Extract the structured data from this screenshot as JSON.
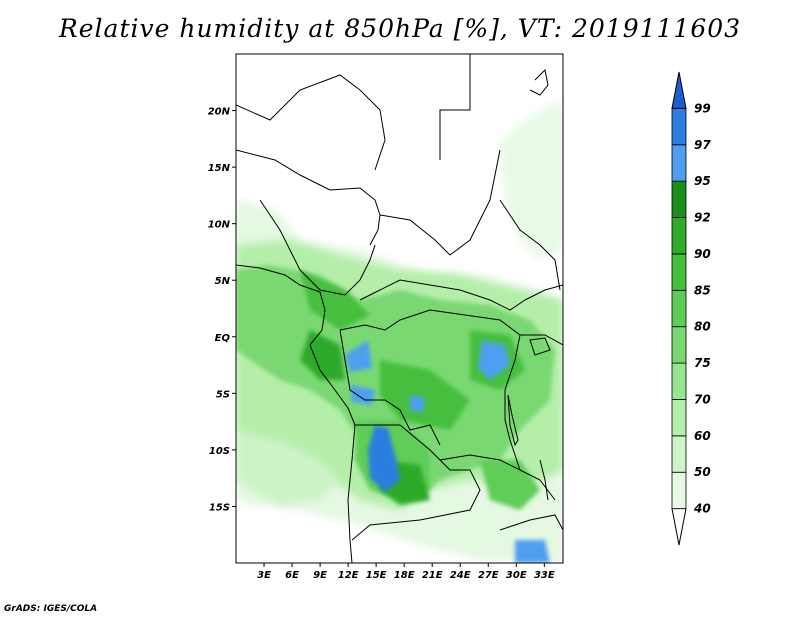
{
  "title": "Relative humidity at 850hPa [%], VT: 2019111603",
  "credit": "GrADS: IGES/COLA",
  "map": {
    "lon_range": [
      0,
      35
    ],
    "lat_range": [
      -20,
      25
    ],
    "lon_ticks": [
      {
        "value": 3,
        "label": "3E"
      },
      {
        "value": 6,
        "label": "6E"
      },
      {
        "value": 9,
        "label": "9E"
      },
      {
        "value": 12,
        "label": "12E"
      },
      {
        "value": 15,
        "label": "15E"
      },
      {
        "value": 18,
        "label": "18E"
      },
      {
        "value": 21,
        "label": "21E"
      },
      {
        "value": 24,
        "label": "24E"
      },
      {
        "value": 27,
        "label": "27E"
      },
      {
        "value": 30,
        "label": "30E"
      },
      {
        "value": 33,
        "label": "33E"
      }
    ],
    "lat_ticks": [
      {
        "value": 20,
        "label": "20N"
      },
      {
        "value": 15,
        "label": "15N"
      },
      {
        "value": 10,
        "label": "10N"
      },
      {
        "value": 5,
        "label": "5N"
      },
      {
        "value": 0,
        "label": "EQ"
      },
      {
        "value": -5,
        "label": "5S"
      },
      {
        "value": -10,
        "label": "10S"
      },
      {
        "value": -15,
        "label": "15S"
      }
    ]
  },
  "colorbar": {
    "labels": [
      "40",
      "50",
      "60",
      "70",
      "75",
      "80",
      "85",
      "90",
      "92",
      "95",
      "97",
      "99"
    ],
    "colors": [
      "#e6fae6",
      "#cdf4c8",
      "#b2eeac",
      "#96e690",
      "#7ad872",
      "#5ecd57",
      "#44bf3c",
      "#2faa29",
      "#1a901a",
      "#4f9ff0",
      "#2a7ee0",
      "#1a5fd0"
    ]
  }
}
